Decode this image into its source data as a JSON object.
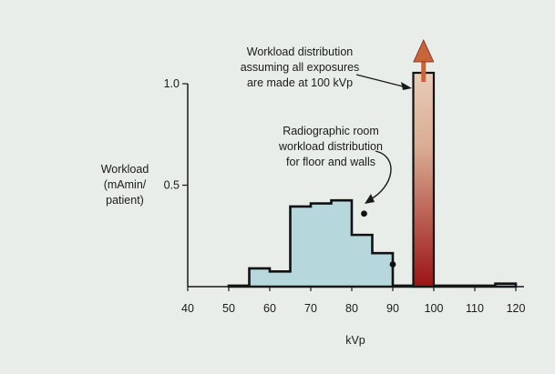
{
  "chart_data": {
    "type": "area",
    "title": "",
    "xlabel": "kVp",
    "ylabel_lines": [
      "Workload",
      "(mAmin/",
      "patient)"
    ],
    "xlim": [
      40,
      120
    ],
    "ylim": [
      0,
      1.0
    ],
    "x_ticks": [
      "40",
      "50",
      "60",
      "70",
      "80",
      "90",
      "100",
      "110",
      "120"
    ],
    "y_ticks": [
      "0.5",
      "1.0"
    ],
    "series": [
      {
        "name": "Radiographic room workload distribution for floor and walls",
        "steps": [
          {
            "x0": 50,
            "x1": 55,
            "y": 0.005
          },
          {
            "x0": 55,
            "x1": 60,
            "y": 0.09
          },
          {
            "x0": 60,
            "x1": 65,
            "y": 0.075
          },
          {
            "x0": 65,
            "x1": 70,
            "y": 0.395
          },
          {
            "x0": 70,
            "x1": 75,
            "y": 0.41
          },
          {
            "x0": 75,
            "x1": 80,
            "y": 0.425
          },
          {
            "x0": 80,
            "x1": 85,
            "y": 0.255
          },
          {
            "x0": 85,
            "x1": 90,
            "y": 0.165
          },
          {
            "x0": 90,
            "x1": 95,
            "y": 0.005
          },
          {
            "x0": 95,
            "x1": 100,
            "y": 0.005
          },
          {
            "x0": 100,
            "x1": 115,
            "y": 0.005
          },
          {
            "x0": 115,
            "x1": 120,
            "y": 0.015
          }
        ],
        "fill": "#b6d7dc"
      },
      {
        "name": "Workload distribution assuming all exposures are made at 100 kVp",
        "bar": {
          "x0": 95,
          "x1": 100
        },
        "gradient_top": "#e8cdb8",
        "gradient_bottom": "#9a1414",
        "arrow_color": "#c8643a"
      }
    ],
    "annotations": [
      {
        "lines": [
          "Workload distribution",
          "assuming all exposures",
          "are made at 100 kVp"
        ],
        "points_to_x": 96,
        "points_to_y": 1.0
      },
      {
        "lines": [
          "Radiographic room",
          "workload distribution",
          "for floor and walls"
        ],
        "points_to_x": 83,
        "points_to_y": 0.36
      }
    ],
    "markers": [
      {
        "x": 83,
        "y": 0.36
      },
      {
        "x": 90,
        "y": 0.11
      }
    ]
  }
}
